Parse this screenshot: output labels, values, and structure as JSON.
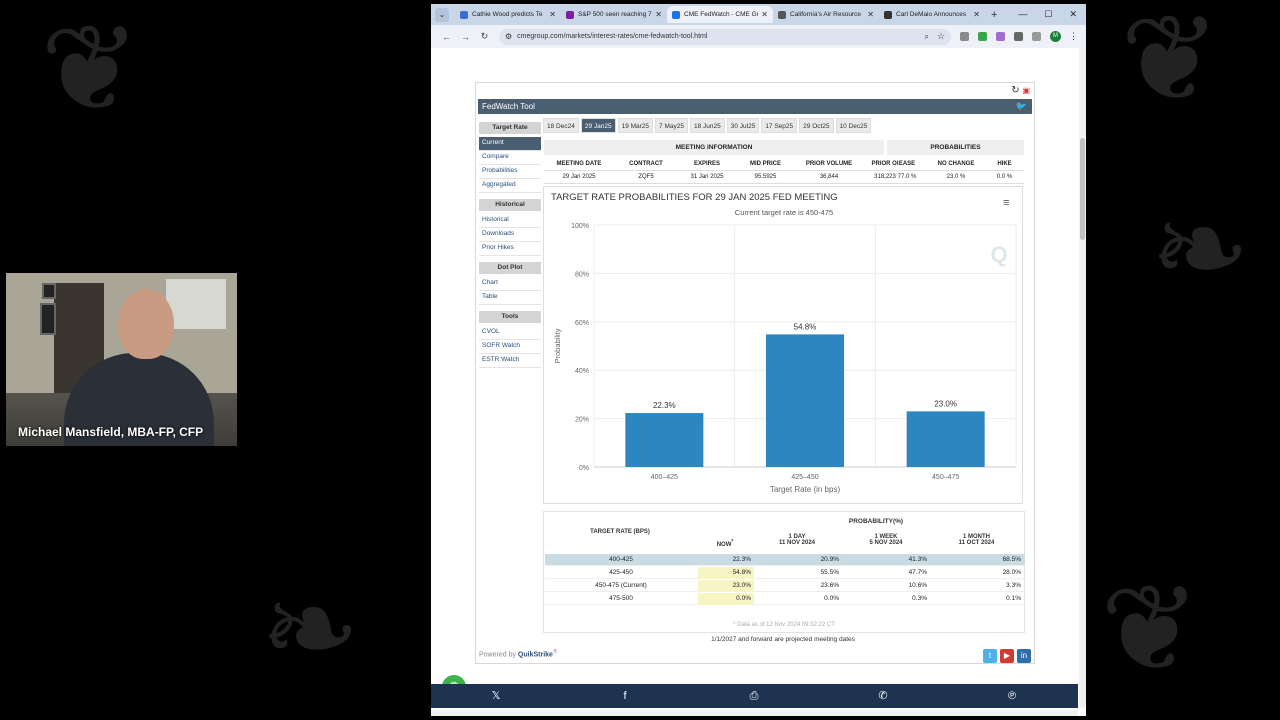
{
  "webcam": {
    "name": "Michael Mansfield, MBA-FP, CFP"
  },
  "browser": {
    "tabs": [
      {
        "title": "Cathie Wood predicts Te",
        "color": "#3b6fcf",
        "active": false
      },
      {
        "title": "S&P 500 seen reaching 7",
        "color": "#7b1fa2",
        "active": false
      },
      {
        "title": "CME FedWatch - CME Gr",
        "color": "#1a73e8",
        "active": true
      },
      {
        "title": "California's Air Resource",
        "color": "#555555",
        "active": false
      },
      {
        "title": "Carl DeMaio Announces",
        "color": "#333333",
        "active": false
      }
    ],
    "url": "cmegroup.com/markets/interest-rates/cme-fedwatch-tool.html",
    "avatar_letter": "M"
  },
  "fedwatch": {
    "header": "FedWatch Tool",
    "sidebar": [
      {
        "type": "head",
        "label": "Target Rate"
      },
      {
        "type": "item",
        "label": "Current",
        "active": true
      },
      {
        "type": "item",
        "label": "Compare"
      },
      {
        "type": "item",
        "label": "Probabilities"
      },
      {
        "type": "item",
        "label": "Aggregated"
      },
      {
        "type": "gap"
      },
      {
        "type": "head",
        "label": "Historical"
      },
      {
        "type": "item",
        "label": "Historical"
      },
      {
        "type": "item",
        "label": "Downloads"
      },
      {
        "type": "item",
        "label": "Prior Hikes"
      },
      {
        "type": "gap"
      },
      {
        "type": "head",
        "label": "Dot Plot"
      },
      {
        "type": "item",
        "label": "Chart"
      },
      {
        "type": "item",
        "label": "Table"
      },
      {
        "type": "gap"
      },
      {
        "type": "head",
        "label": "Tools"
      },
      {
        "type": "item",
        "label": "CVOL"
      },
      {
        "type": "item",
        "label": "SOFR Watch"
      },
      {
        "type": "item",
        "label": "ESTR Watch"
      }
    ],
    "dates": [
      "18 Dec24",
      "29 Jan25",
      "19 Mar25",
      "7 May25",
      "18 Jun25",
      "30 Jul25",
      "17 Sep25",
      "29 Oct25",
      "10 Dec25"
    ],
    "selected_date": "29 Jan25",
    "meeting": {
      "title": "MEETING INFORMATION",
      "headers": [
        "MEETING DATE",
        "CONTRACT",
        "EXPIRES",
        "MID PRICE",
        "PRIOR VOLUME",
        "PRIOR OI"
      ],
      "values": [
        "29 Jan 2025",
        "ZQF5",
        "31 Jan 2025",
        "95.5925",
        "36,844",
        "318,223"
      ]
    },
    "probabilities": {
      "title": "PROBABILITIES",
      "headers": [
        "EASE",
        "NO CHANGE",
        "HIKE"
      ],
      "values": [
        "77.0 %",
        "23.0 %",
        "0.0 %"
      ]
    },
    "prob_table": {
      "header": "PROBABILITY(%)",
      "col0": "TARGET RATE (BPS)",
      "cols": [
        {
          "l1": "NOW",
          "l2": "*"
        },
        {
          "l1": "1 DAY",
          "l2": "11 NOV 2024"
        },
        {
          "l1": "1 WEEK",
          "l2": "5 NOV 2024"
        },
        {
          "l1": "1 MONTH",
          "l2": "11 OCT 2024"
        }
      ],
      "rows": [
        {
          "rate": "400-425",
          "vals": [
            "22.3%",
            "20.9%",
            "41.3%",
            "68.5%"
          ]
        },
        {
          "rate": "425-450",
          "vals": [
            "54.8%",
            "55.5%",
            "47.7%",
            "28.0%"
          ]
        },
        {
          "rate": "450-475 (Current)",
          "vals": [
            "23.0%",
            "23.6%",
            "10.6%",
            "3.3%"
          ]
        },
        {
          "rate": "475-500",
          "vals": [
            "0.0%",
            "0.0%",
            "0.3%",
            "0.1%"
          ]
        }
      ],
      "footnote": "* Data as of 12 Nov 2024 09:32:22 CT"
    },
    "projected_note": "1/1/2027 and forward are projected meeting dates",
    "powered_by": "Powered by",
    "powered_brand": "QuikStrike",
    "powered_reg": "®"
  },
  "chart_data": {
    "type": "bar",
    "title": "TARGET RATE PROBABILITIES FOR 29 JAN 2025 FED MEETING",
    "subtitle": "Current target rate is 450-475",
    "xlabel": "Target Rate (in bps)",
    "ylabel": "Probability",
    "categories": [
      "400–425",
      "425–450",
      "450–475"
    ],
    "values": [
      22.3,
      54.8,
      23.0
    ],
    "value_labels": [
      "22.3%",
      "54.8%",
      "23.0%"
    ],
    "ylim": [
      0,
      100
    ],
    "yticks": [
      "0%",
      "20%",
      "40%",
      "60%",
      "80%",
      "100%"
    ],
    "bar_color": "#2e86c1",
    "grid": true,
    "watermark": "Q"
  },
  "share": [
    "𝕏",
    "f",
    "⎙",
    "✆",
    "℗"
  ]
}
